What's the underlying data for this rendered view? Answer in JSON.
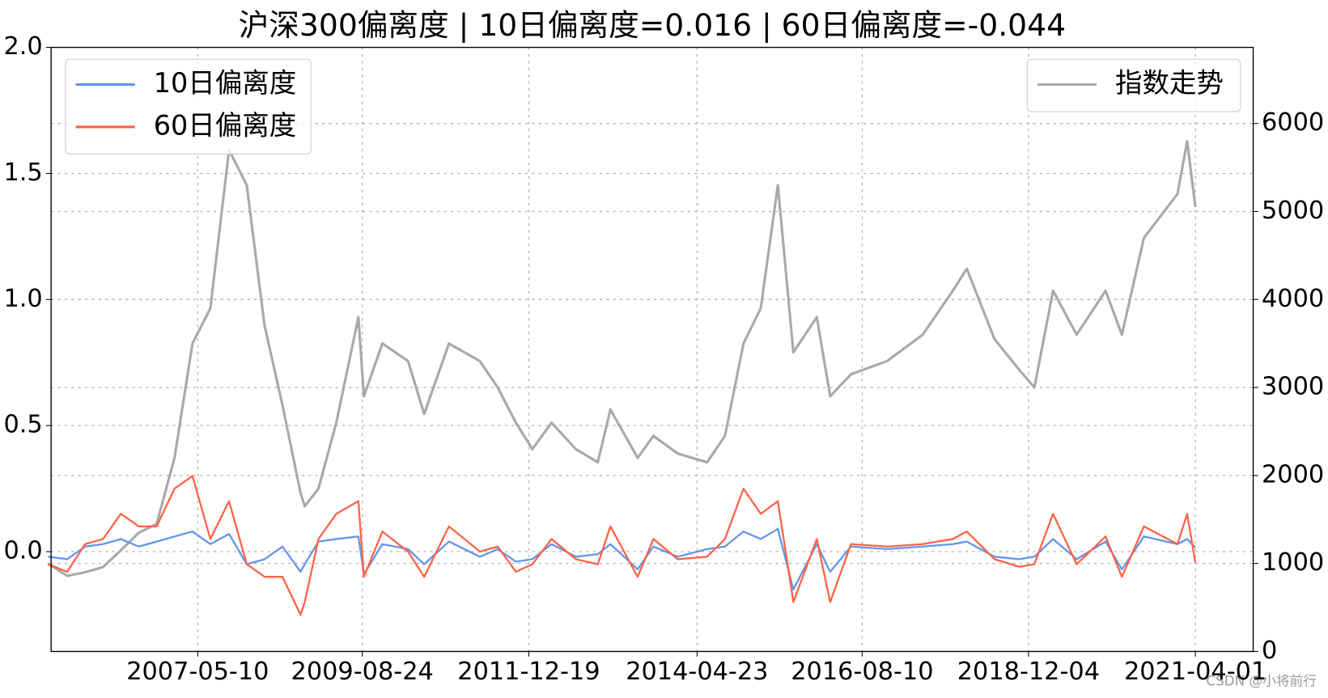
{
  "chart_data": {
    "type": "line",
    "title": "沪深300偏离度 | 10日偏离度=0.016 | 60日偏离度=-0.044",
    "x": [
      "2005-04-08",
      "2005-07-15",
      "2005-10-14",
      "2006-01-13",
      "2006-04-14",
      "2006-07-14",
      "2006-10-13",
      "2007-01-12",
      "2007-04-13",
      "2007-07-13",
      "2007-10-16",
      "2008-01-14",
      "2008-04-14",
      "2008-07-14",
      "2008-10-14",
      "2008-11-04",
      "2009-01-13",
      "2009-04-14",
      "2009-08-04",
      "2009-09-01",
      "2009-12-04",
      "2010-04-14",
      "2010-07-05",
      "2010-11-08",
      "2011-04-14",
      "2011-07-14",
      "2011-10-14",
      "2012-01-06",
      "2012-04-13",
      "2012-08-14",
      "2012-12-04",
      "2013-02-06",
      "2013-06-25",
      "2013-09-13",
      "2014-01-14",
      "2014-06-13",
      "2014-09-12",
      "2014-12-15",
      "2015-03-13",
      "2015-06-08",
      "2015-08-26",
      "2015-12-23",
      "2016-02-29",
      "2016-06-14",
      "2016-12-14",
      "2017-06-14",
      "2017-11-14",
      "2018-01-24",
      "2018-06-14",
      "2018-10-18",
      "2019-01-03",
      "2019-04-08",
      "2019-08-06",
      "2019-12-31",
      "2020-03-23",
      "2020-07-13",
      "2020-12-31",
      "2021-02-18",
      "2021-04-01"
    ],
    "series": [
      {
        "name": "指数走势",
        "color": "#a9a9a9",
        "axis": "y2",
        "values": [
          1000,
          860,
          900,
          960,
          1150,
          1350,
          1450,
          2200,
          3500,
          3900,
          5700,
          5300,
          3700,
          2800,
          1800,
          1650,
          1850,
          2600,
          3800,
          2900,
          3500,
          3300,
          2700,
          3500,
          3300,
          3000,
          2600,
          2300,
          2600,
          2300,
          2150,
          2750,
          2200,
          2450,
          2250,
          2150,
          2450,
          3500,
          3900,
          5300,
          3400,
          3800,
          2900,
          3150,
          3300,
          3600,
          4100,
          4350,
          3550,
          3200,
          3000,
          4100,
          3600,
          4100,
          3600,
          4700,
          5200,
          5800,
          5050
        ]
      },
      {
        "name": "10日偏离度",
        "color": "#6495ed",
        "values": [
          -0.02,
          -0.03,
          0.02,
          0.03,
          0.05,
          0.02,
          0.04,
          0.06,
          0.08,
          0.03,
          0.07,
          -0.05,
          -0.03,
          0.02,
          -0.08,
          -0.05,
          0.04,
          0.05,
          0.06,
          -0.09,
          0.03,
          0.01,
          -0.05,
          0.04,
          -0.02,
          0.01,
          -0.04,
          -0.03,
          0.03,
          -0.02,
          -0.01,
          0.03,
          -0.07,
          0.02,
          -0.02,
          0.01,
          0.02,
          0.08,
          0.05,
          0.09,
          -0.15,
          0.03,
          -0.08,
          0.02,
          0.01,
          0.02,
          0.03,
          0.04,
          -0.02,
          -0.03,
          -0.02,
          0.05,
          -0.03,
          0.04,
          -0.07,
          0.06,
          0.03,
          0.05,
          0.016
        ]
      },
      {
        "name": "60日偏离度",
        "color": "#ff6347",
        "values": [
          -0.05,
          -0.08,
          0.03,
          0.05,
          0.15,
          0.1,
          0.1,
          0.25,
          0.3,
          0.05,
          0.2,
          -0.05,
          -0.1,
          -0.1,
          -0.25,
          -0.2,
          0.05,
          0.15,
          0.2,
          -0.1,
          0.08,
          0.0,
          -0.1,
          0.1,
          0.0,
          0.02,
          -0.08,
          -0.05,
          0.05,
          -0.03,
          -0.05,
          0.1,
          -0.1,
          0.05,
          -0.03,
          -0.02,
          0.05,
          0.25,
          0.15,
          0.2,
          -0.2,
          0.05,
          -0.2,
          0.03,
          0.02,
          0.03,
          0.05,
          0.08,
          -0.03,
          -0.06,
          -0.05,
          0.15,
          -0.05,
          0.06,
          -0.1,
          0.1,
          0.03,
          0.15,
          -0.044
        ]
      }
    ],
    "xlim": [
      "2005-04-24",
      "2022-01-20"
    ],
    "xticks": [
      "2007-05-10",
      "2009-08-24",
      "2011-12-19",
      "2014-04-23",
      "2016-08-10",
      "2018-12-04",
      "2021-04-01"
    ],
    "ylim": [
      -0.396,
      2.0
    ],
    "yticks": [
      {
        "value": 0,
        "label": "0.0"
      },
      0.5,
      {
        "value": 1,
        "label": "1.0"
      },
      1.5,
      {
        "value": 2,
        "label": "2.0"
      }
    ],
    "y2lim": [
      0,
      6865
    ],
    "y2ticks": [
      0,
      1000,
      2000,
      3000,
      4000,
      5000,
      6000
    ],
    "grid": true,
    "legend": {
      "y": "upper left",
      "y2": "upper right"
    },
    "watermark": "CSDN @小将前行"
  }
}
